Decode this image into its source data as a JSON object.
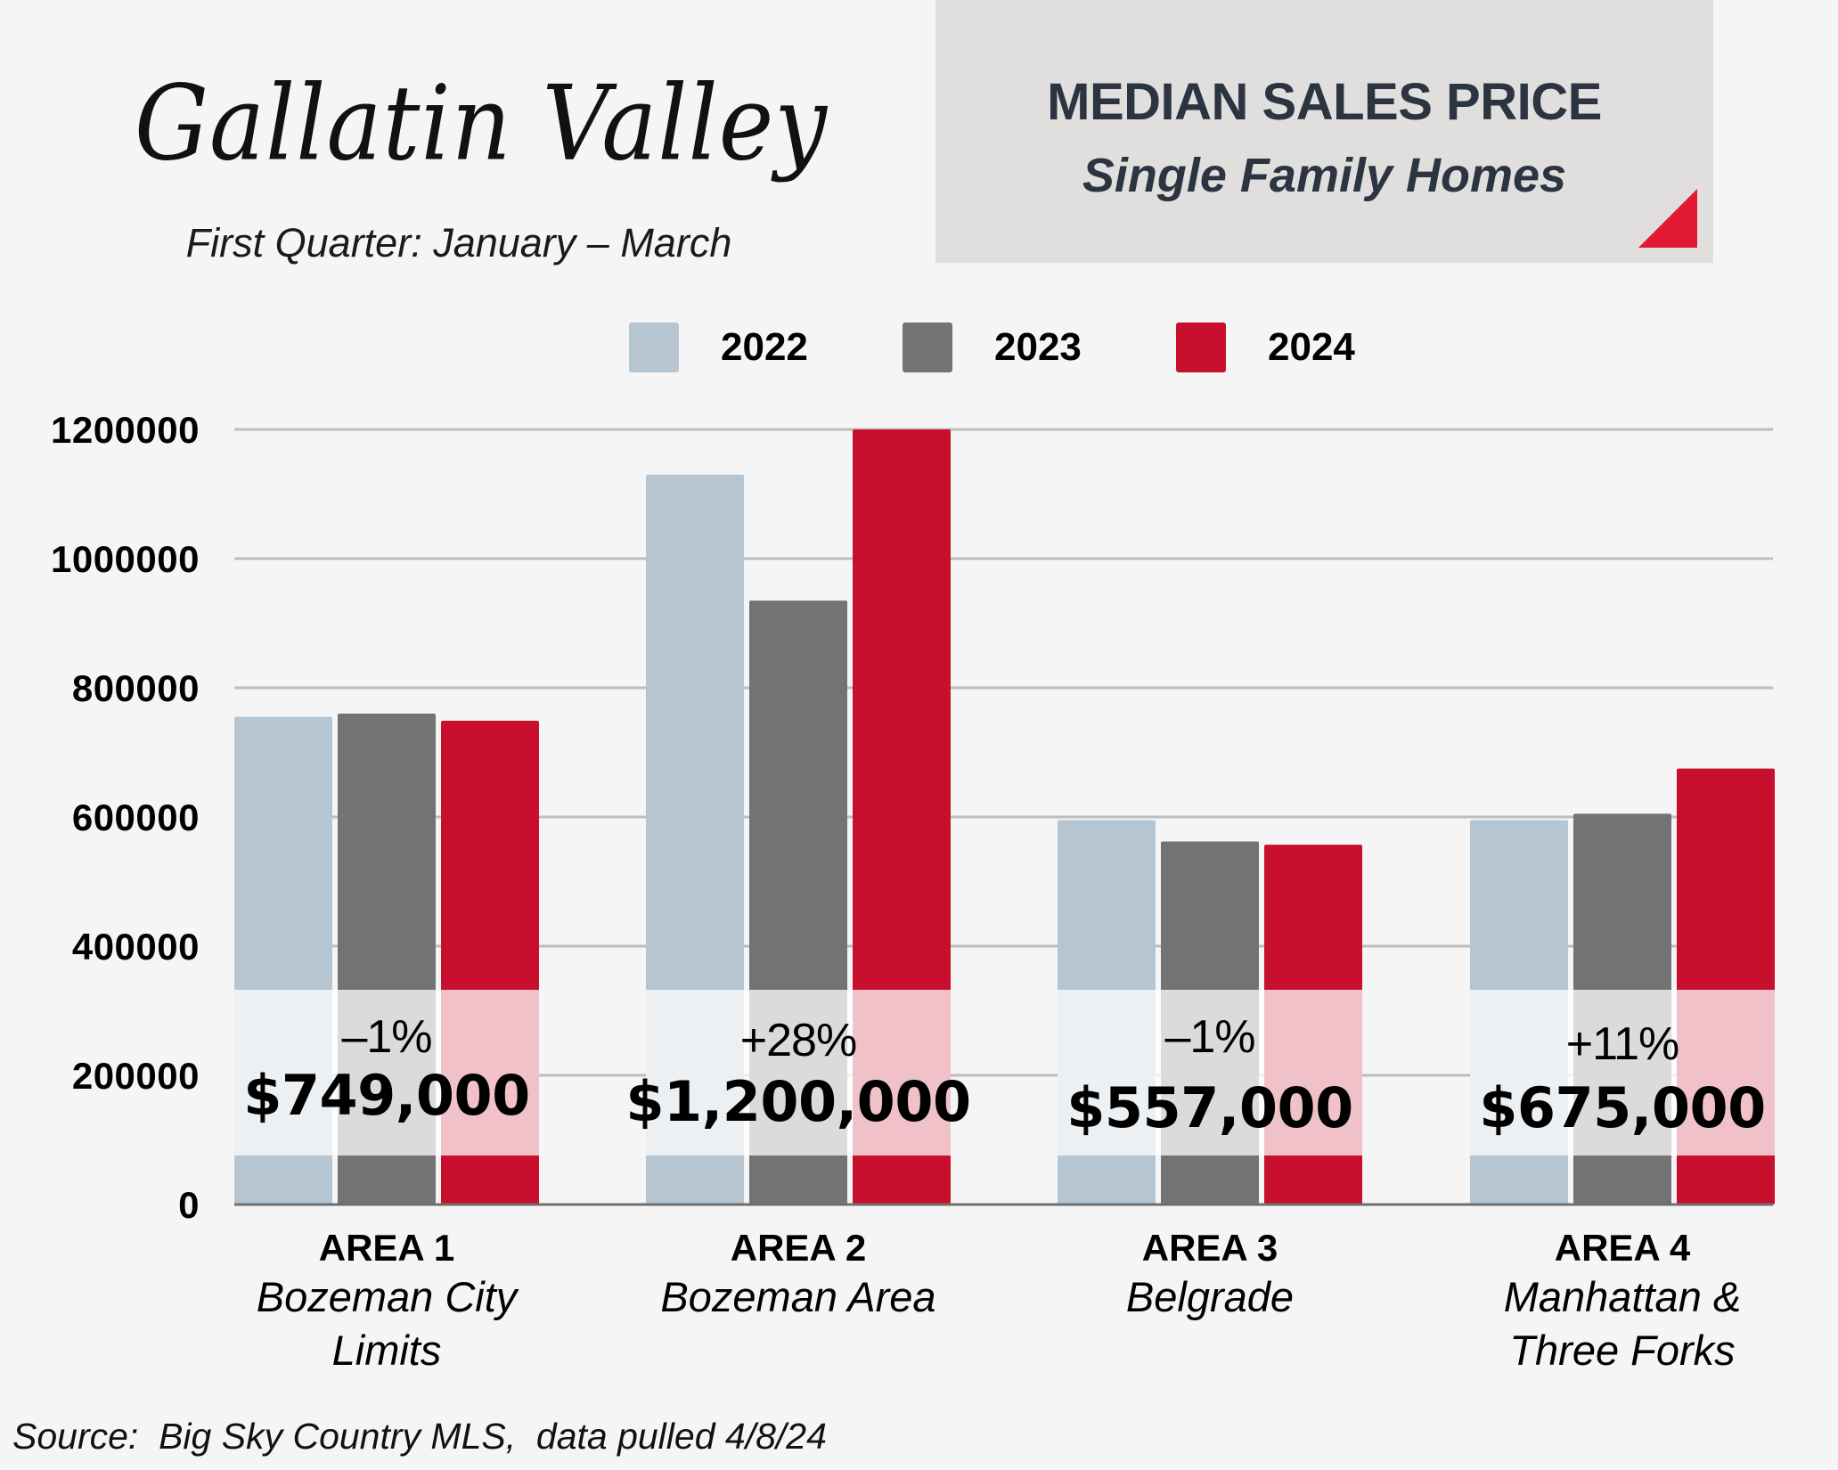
{
  "header": {
    "title": "Gallatin Valley",
    "subtitle": "First Quarter: January – March",
    "box_line1": "MEDIAN SALES PRICE",
    "box_line2": "Single Family Homes",
    "accent_color": "#e01a33"
  },
  "source": "Source:  Big Sky Country MLS,  data pulled 4/8/24",
  "chart_data": {
    "type": "bar",
    "title": "MEDIAN SALES PRICE — Single Family Homes",
    "xlabel": "",
    "ylabel": "",
    "ylim": [
      0,
      1200000
    ],
    "yticks": [
      0,
      200000,
      400000,
      600000,
      800000,
      1000000,
      1200000
    ],
    "ytick_labels": [
      "0",
      "200000",
      "400000",
      "600000",
      "800000",
      "1000000",
      "1200000"
    ],
    "grid": true,
    "legend_position": "top-center",
    "categories": [
      {
        "area": "AREA 1",
        "name_lines": [
          "Bozeman City",
          "Limits"
        ]
      },
      {
        "area": "AREA 2",
        "name_lines": [
          "Bozeman Area"
        ]
      },
      {
        "area": "AREA 3",
        "name_lines": [
          "Belgrade"
        ]
      },
      {
        "area": "AREA 4",
        "name_lines": [
          "Manhattan &",
          "Three Forks"
        ]
      }
    ],
    "series": [
      {
        "name": "2022",
        "color": "#b5c5d2",
        "values": [
          755000,
          1130000,
          595000,
          595000
        ]
      },
      {
        "name": "2023",
        "color": "#737373",
        "values": [
          760000,
          935000,
          562000,
          605000
        ]
      },
      {
        "name": "2024",
        "color": "#c8102e",
        "values": [
          749000,
          1200000,
          557000,
          675000
        ]
      }
    ],
    "annotations": [
      {
        "change": "–1%",
        "price": "$749,000"
      },
      {
        "change": "+28%",
        "price": "$1,200,000"
      },
      {
        "change": "–1%",
        "price": "$557,000"
      },
      {
        "change": "+11%",
        "price": "$675,000"
      }
    ]
  }
}
